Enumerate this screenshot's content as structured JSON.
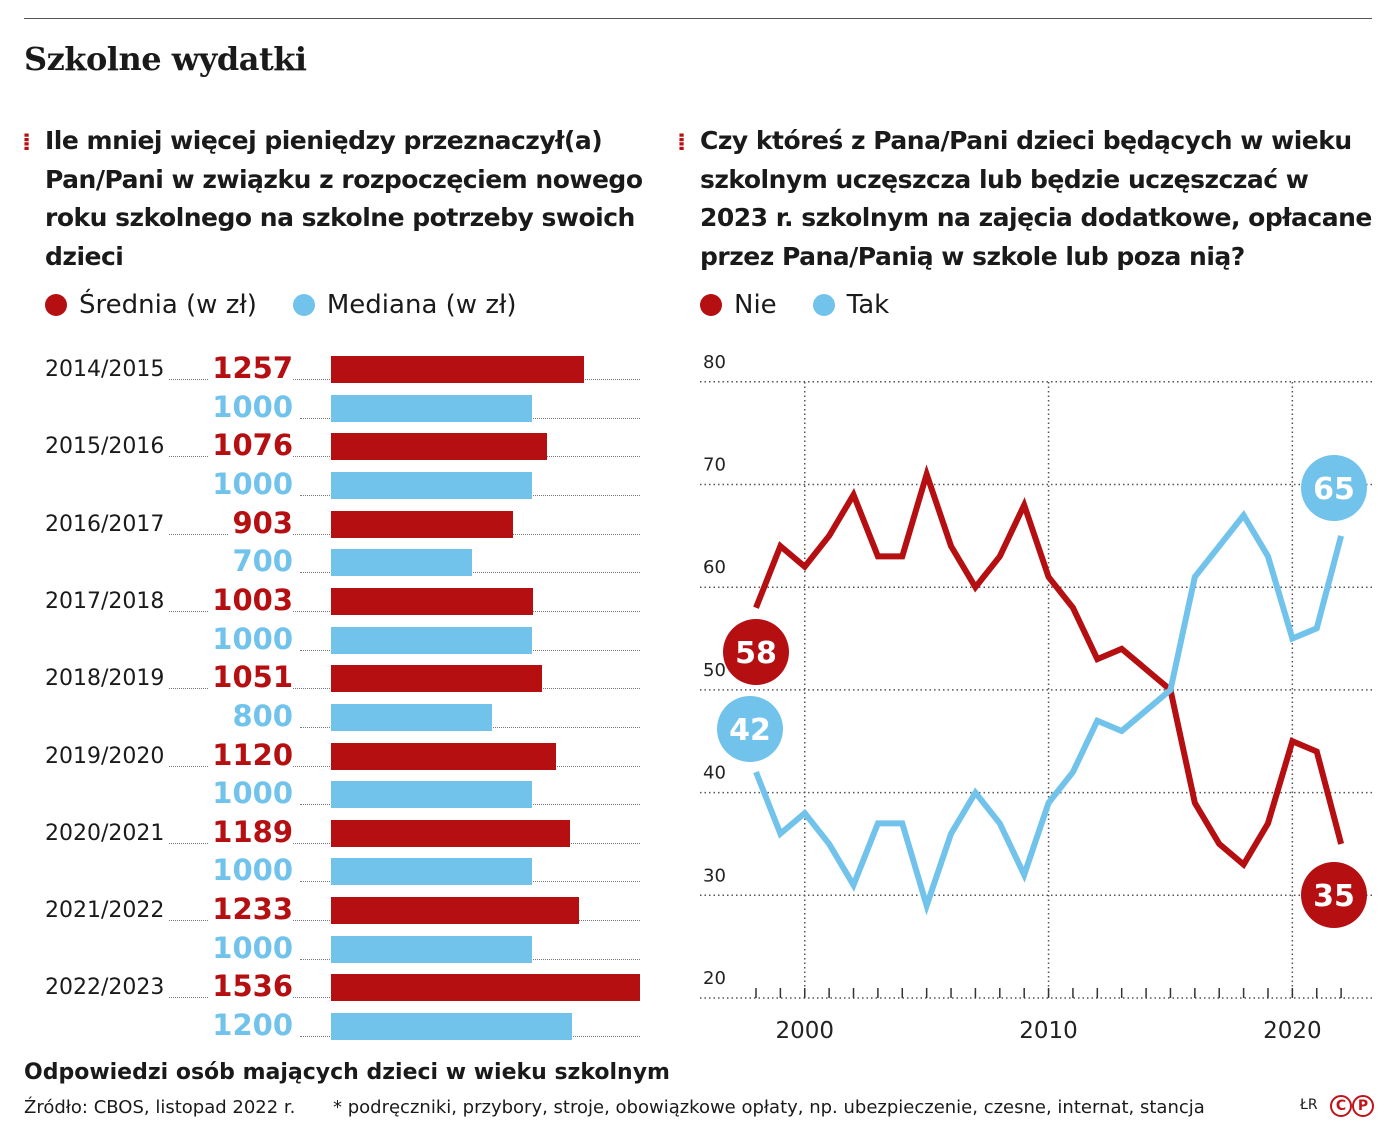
{
  "title": "Szkolne wydatki",
  "colors": {
    "red": "#b50f12",
    "blue": "#72c3ec"
  },
  "chart_data": [
    {
      "type": "bar",
      "question": "Ile mniej więcej pieniędzy przeznaczył(a) Pan/Pani w związku z rozpoczęciem nowego roku szkolnego na szkolne potrzeby swoich dzieci",
      "legend": [
        "Średnia (w zł)",
        "Mediana (w zł)"
      ],
      "categories": [
        "2014/2015",
        "2015/2016",
        "2016/2017",
        "2017/2018",
        "2018/2019",
        "2019/2020",
        "2020/2021",
        "2021/2022",
        "2022/2023"
      ],
      "series": [
        {
          "name": "Średnia (w zł)",
          "values": [
            1257,
            1076,
            903,
            1003,
            1051,
            1120,
            1189,
            1233,
            1536
          ]
        },
        {
          "name": "Mediana (w zł)",
          "values": [
            1000,
            1000,
            700,
            1000,
            800,
            1000,
            1000,
            1000,
            1200
          ]
        }
      ]
    },
    {
      "type": "line",
      "question": "Czy któreś z Pana/Pani dzieci będących w wieku szkolnym uczęszcza lub będzie uczęszczać w 2023 r. szkolnym na zajęcia dodatkowe, opłacane przez Pana/Panią w szkole lub poza nią?",
      "legend": [
        "Nie",
        "Tak"
      ],
      "x": [
        1998,
        1999,
        2000,
        2001,
        2002,
        2003,
        2004,
        2005,
        2006,
        2007,
        2008,
        2009,
        2010,
        2011,
        2012,
        2013,
        2014,
        2015,
        2016,
        2017,
        2018,
        2019,
        2020,
        2021,
        2022
      ],
      "series": [
        {
          "name": "Nie",
          "values": [
            58,
            64,
            62,
            65,
            69,
            63,
            63,
            71,
            64,
            60,
            63,
            68,
            61,
            58,
            53,
            54,
            52,
            50,
            39,
            35,
            33,
            37,
            45,
            44,
            35
          ]
        },
        {
          "name": "Tak",
          "values": [
            42,
            36,
            38,
            35,
            31,
            37,
            37,
            29,
            36,
            40,
            37,
            32,
            39,
            42,
            47,
            46,
            48,
            50,
            61,
            64,
            67,
            63,
            55,
            56,
            65
          ]
        }
      ],
      "ylim": [
        20,
        80
      ],
      "yticks": [
        "20",
        "30",
        "40",
        "50",
        "60",
        "70",
        "80"
      ],
      "xticks": [
        "2000",
        "2010",
        "2020"
      ],
      "grid": true,
      "end_labels": {
        "Nie_start": "58",
        "Tak_start": "42",
        "Tak_end": "65",
        "Nie_end": "35"
      }
    }
  ],
  "footer": {
    "note": "Odpowiedzi osób mających dzieci w wieku szkolnym",
    "source": "Źródło: CBOS, listopad 2022 r.",
    "footnote": "* podręczniki, przybory, stroje, obowiązkowe opłaty, np. ubezpieczenie, czesne, internat, stancja",
    "credit": "ŁR"
  }
}
